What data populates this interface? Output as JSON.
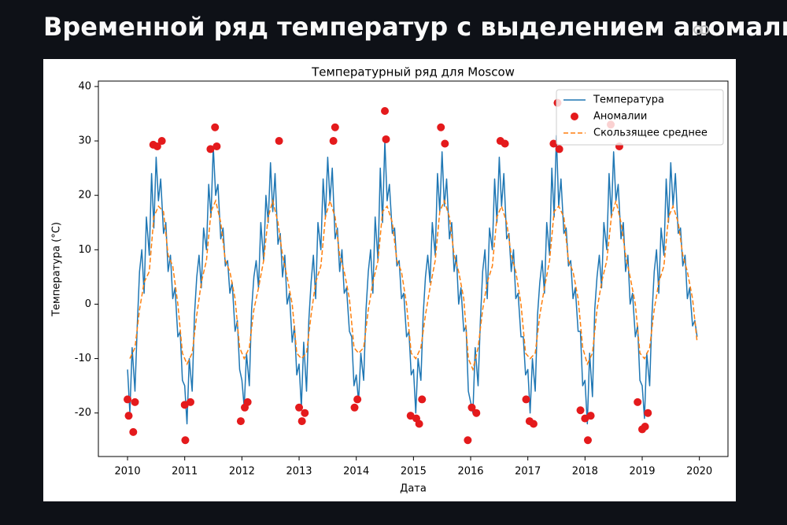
{
  "header": {
    "title": "Временной ряд температур с выделением аномалий"
  },
  "chart_data": {
    "type": "line",
    "title": "Температурный ряд для Moscow",
    "x_label": "Дата",
    "y_label": "Температура (°C)",
    "xlim": [
      2009.49,
      2020.5
    ],
    "ylim": [
      -28,
      41
    ],
    "xticks": [
      2010,
      2011,
      2012,
      2013,
      2014,
      2015,
      2016,
      2017,
      2018,
      2019,
      2020
    ],
    "yticks": [
      -20,
      -10,
      0,
      10,
      20,
      30,
      40
    ],
    "legend": "upper right",
    "series": [
      {
        "name": "Температура",
        "style": "line",
        "color": "#1f77b4",
        "x": [
          2010,
          2010.04,
          2010.08,
          2010.13,
          2010.17,
          2010.21,
          2010.25,
          2010.29,
          2010.33,
          2010.38,
          2010.42,
          2010.46,
          2010.5,
          2010.54,
          2010.58,
          2010.63,
          2010.67,
          2010.71,
          2010.75,
          2010.79,
          2010.83,
          2010.88,
          2010.92,
          2010.96,
          2011,
          2011.04,
          2011.08,
          2011.13,
          2011.17,
          2011.21,
          2011.25,
          2011.29,
          2011.33,
          2011.38,
          2011.42,
          2011.46,
          2011.5,
          2011.54,
          2011.58,
          2011.63,
          2011.67,
          2011.71,
          2011.75,
          2011.79,
          2011.83,
          2011.88,
          2011.92,
          2011.96,
          2012,
          2012.04,
          2012.08,
          2012.13,
          2012.17,
          2012.21,
          2012.25,
          2012.29,
          2012.33,
          2012.38,
          2012.42,
          2012.46,
          2012.5,
          2012.54,
          2012.58,
          2012.63,
          2012.67,
          2012.71,
          2012.75,
          2012.79,
          2012.83,
          2012.88,
          2012.92,
          2012.96,
          2013,
          2013.04,
          2013.08,
          2013.13,
          2013.17,
          2013.21,
          2013.25,
          2013.29,
          2013.33,
          2013.38,
          2013.42,
          2013.46,
          2013.5,
          2013.54,
          2013.58,
          2013.63,
          2013.67,
          2013.71,
          2013.75,
          2013.79,
          2013.83,
          2013.88,
          2013.92,
          2013.96,
          2014,
          2014.04,
          2014.08,
          2014.13,
          2014.17,
          2014.21,
          2014.25,
          2014.29,
          2014.33,
          2014.38,
          2014.42,
          2014.46,
          2014.5,
          2014.54,
          2014.58,
          2014.63,
          2014.67,
          2014.71,
          2014.75,
          2014.79,
          2014.83,
          2014.88,
          2014.92,
          2014.96,
          2015,
          2015.04,
          2015.08,
          2015.13,
          2015.17,
          2015.21,
          2015.25,
          2015.29,
          2015.33,
          2015.38,
          2015.42,
          2015.46,
          2015.5,
          2015.54,
          2015.58,
          2015.63,
          2015.67,
          2015.71,
          2015.75,
          2015.79,
          2015.83,
          2015.88,
          2015.92,
          2015.96,
          2016,
          2016.04,
          2016.08,
          2016.13,
          2016.17,
          2016.21,
          2016.25,
          2016.29,
          2016.33,
          2016.38,
          2016.42,
          2016.46,
          2016.5,
          2016.54,
          2016.58,
          2016.63,
          2016.67,
          2016.71,
          2016.75,
          2016.79,
          2016.83,
          2016.88,
          2016.92,
          2016.96,
          2017,
          2017.04,
          2017.08,
          2017.13,
          2017.17,
          2017.21,
          2017.25,
          2017.29,
          2017.33,
          2017.38,
          2017.42,
          2017.46,
          2017.5,
          2017.54,
          2017.58,
          2017.63,
          2017.67,
          2017.71,
          2017.75,
          2017.79,
          2017.83,
          2017.88,
          2017.92,
          2017.96,
          2018,
          2018.04,
          2018.08,
          2018.13,
          2018.17,
          2018.21,
          2018.25,
          2018.29,
          2018.33,
          2018.38,
          2018.42,
          2018.46,
          2018.5,
          2018.54,
          2018.58,
          2018.63,
          2018.67,
          2018.71,
          2018.75,
          2018.79,
          2018.83,
          2018.88,
          2018.92,
          2018.96,
          2019,
          2019.04,
          2019.08,
          2019.13,
          2019.17,
          2019.21,
          2019.25,
          2019.29,
          2019.33,
          2019.38,
          2019.42,
          2019.46,
          2019.5,
          2019.54,
          2019.58,
          2019.63,
          2019.67,
          2019.71,
          2019.75,
          2019.79,
          2019.83,
          2019.88,
          2019.92,
          2019.96
        ],
        "values": [
          -12,
          -20,
          -8,
          -16,
          -4,
          6,
          10,
          2,
          16,
          9,
          24,
          14,
          27,
          19,
          23,
          13,
          15,
          6,
          9,
          1,
          3,
          -6,
          -5,
          -14,
          -15,
          -22,
          -10,
          -16,
          -2,
          5,
          9,
          3,
          14,
          10,
          22,
          16,
          29,
          20,
          22,
          12,
          14,
          7,
          8,
          2,
          4,
          -5,
          -3,
          -12,
          -14,
          -19,
          -9,
          -15,
          -1,
          5,
          8,
          3,
          15,
          8,
          20,
          15,
          26,
          17,
          24,
          11,
          13,
          5,
          9,
          0,
          2,
          -7,
          -4,
          -13,
          -11,
          -19,
          -7,
          -16,
          -3,
          4,
          9,
          1,
          15,
          10,
          23,
          16,
          27,
          19,
          25,
          12,
          14,
          6,
          10,
          2,
          3,
          -5,
          -6,
          -15,
          -13,
          -18,
          -9,
          -14,
          -1,
          6,
          10,
          2,
          16,
          8,
          25,
          15,
          30,
          19,
          22,
          13,
          14,
          7,
          8,
          1,
          2,
          -6,
          -5,
          -13,
          -12,
          -20,
          -10,
          -14,
          -2,
          5,
          9,
          4,
          15,
          9,
          24,
          17,
          28,
          18,
          23,
          12,
          15,
          6,
          9,
          0,
          3,
          -5,
          -4,
          -16,
          -18,
          -20,
          -8,
          -15,
          -3,
          6,
          10,
          1,
          14,
          10,
          23,
          15,
          27,
          18,
          24,
          12,
          13,
          6,
          10,
          1,
          2,
          -6,
          -6,
          -13,
          -12,
          -20,
          -10,
          -16,
          -2,
          4,
          8,
          2,
          15,
          9,
          25,
          16,
          31,
          18,
          23,
          13,
          14,
          7,
          8,
          1,
          3,
          -5,
          -5,
          -15,
          -14,
          -22,
          -9,
          -17,
          -1,
          5,
          9,
          3,
          15,
          10,
          24,
          16,
          28,
          19,
          22,
          12,
          15,
          6,
          9,
          0,
          2,
          -6,
          -4,
          -14,
          -15,
          -21,
          -9,
          -15,
          -2,
          6,
          10,
          2,
          14,
          9,
          23,
          15,
          26,
          18,
          24,
          13,
          14,
          7,
          9,
          1,
          3,
          -4,
          -3,
          -6
        ]
      },
      {
        "name": "Аномалии",
        "style": "scatter",
        "color": "#e41a1c",
        "x": [
          2010,
          2010.02,
          2010.1,
          2010.13,
          2010.45,
          2010.52,
          2010.6,
          2011,
          2011.01,
          2011.1,
          2011.45,
          2011.53,
          2011.56,
          2011.98,
          2012.05,
          2012.1,
          2012.65,
          2013,
          2013.05,
          2013.1,
          2013.6,
          2013.63,
          2013.97,
          2014.02,
          2014.5,
          2014.52,
          2014.95,
          2015.05,
          2015.1,
          2015.15,
          2015.48,
          2015.55,
          2015.95,
          2016.02,
          2016.1,
          2016.52,
          2016.6,
          2016.97,
          2017.03,
          2017.1,
          2017.45,
          2017.52,
          2017.55,
          2017.92,
          2018,
          2018.05,
          2018.1,
          2018.45,
          2018.6,
          2018.92,
          2019,
          2019.05,
          2019.1
        ],
        "values": [
          -17.5,
          -20.5,
          -23.5,
          -18,
          29.3,
          29,
          30,
          -18.5,
          -25,
          -18,
          28.5,
          32.5,
          29,
          -21.5,
          -19,
          -18,
          30,
          -19,
          -21.5,
          -20,
          30,
          32.5,
          -19,
          -17.5,
          35.5,
          30.3,
          -20.5,
          -21,
          -22,
          -17.5,
          32.5,
          29.5,
          -25,
          -19,
          -20,
          30,
          29.5,
          -17.5,
          -21.5,
          -22,
          29.5,
          37,
          28.5,
          -19.5,
          -21,
          -25,
          -20.5,
          33,
          29,
          -18,
          -23,
          -22.5,
          -20
        ]
      },
      {
        "name": "Скользящее среднее",
        "style": "dashed",
        "color": "#ff7f0e",
        "x": [
          2010.04,
          2010.13,
          2010.21,
          2010.29,
          2010.38,
          2010.46,
          2010.54,
          2010.63,
          2010.71,
          2010.79,
          2010.88,
          2010.96,
          2011.04,
          2011.13,
          2011.21,
          2011.29,
          2011.38,
          2011.46,
          2011.54,
          2011.63,
          2011.71,
          2011.79,
          2011.88,
          2011.96,
          2012.04,
          2012.13,
          2012.21,
          2012.29,
          2012.38,
          2012.46,
          2012.54,
          2012.63,
          2012.71,
          2012.79,
          2012.88,
          2012.96,
          2013.04,
          2013.13,
          2013.21,
          2013.29,
          2013.38,
          2013.46,
          2013.54,
          2013.63,
          2013.71,
          2013.79,
          2013.88,
          2013.96,
          2014.04,
          2014.13,
          2014.21,
          2014.29,
          2014.38,
          2014.46,
          2014.54,
          2014.63,
          2014.71,
          2014.79,
          2014.88,
          2014.96,
          2015.04,
          2015.13,
          2015.21,
          2015.29,
          2015.38,
          2015.46,
          2015.54,
          2015.63,
          2015.71,
          2015.79,
          2015.88,
          2015.96,
          2016.04,
          2016.13,
          2016.21,
          2016.29,
          2016.38,
          2016.46,
          2016.54,
          2016.63,
          2016.71,
          2016.79,
          2016.88,
          2016.96,
          2017.04,
          2017.13,
          2017.21,
          2017.29,
          2017.38,
          2017.46,
          2017.54,
          2017.63,
          2017.71,
          2017.79,
          2017.88,
          2017.96,
          2018.04,
          2018.13,
          2018.21,
          2018.29,
          2018.38,
          2018.46,
          2018.54,
          2018.63,
          2018.71,
          2018.79,
          2018.88,
          2018.96,
          2019.04,
          2019.13,
          2019.21,
          2019.29,
          2019.38,
          2019.46,
          2019.54,
          2019.63,
          2019.71,
          2019.79,
          2019.88,
          2019.96
        ],
        "values": [
          -10,
          -8,
          -1,
          4,
          6,
          16,
          18,
          17,
          9,
          7,
          0,
          -9,
          -11,
          -9,
          -2,
          4,
          8,
          17,
          19,
          15,
          8,
          6,
          1,
          -8,
          -10,
          -8,
          -1,
          3,
          8,
          16,
          19,
          15,
          9,
          5,
          0,
          -9,
          -10,
          -9,
          -2,
          4,
          7,
          16,
          19,
          16,
          9,
          6,
          1,
          -8,
          -9,
          -8,
          -1,
          4,
          8,
          17,
          18,
          15,
          8,
          6,
          0,
          -9,
          -10,
          -8,
          -2,
          3,
          8,
          17,
          19,
          16,
          9,
          6,
          1,
          -10,
          -12,
          -8,
          -1,
          4,
          7,
          16,
          18,
          15,
          9,
          6,
          0,
          -9,
          -10,
          -9,
          -2,
          3,
          8,
          17,
          18,
          16,
          8,
          6,
          1,
          -8,
          -11,
          -9,
          -1,
          4,
          8,
          16,
          19,
          15,
          9,
          5,
          0,
          -9,
          -10,
          -8,
          -1,
          4,
          7,
          16,
          18,
          15,
          9,
          6,
          1,
          -7
        ]
      }
    ]
  }
}
